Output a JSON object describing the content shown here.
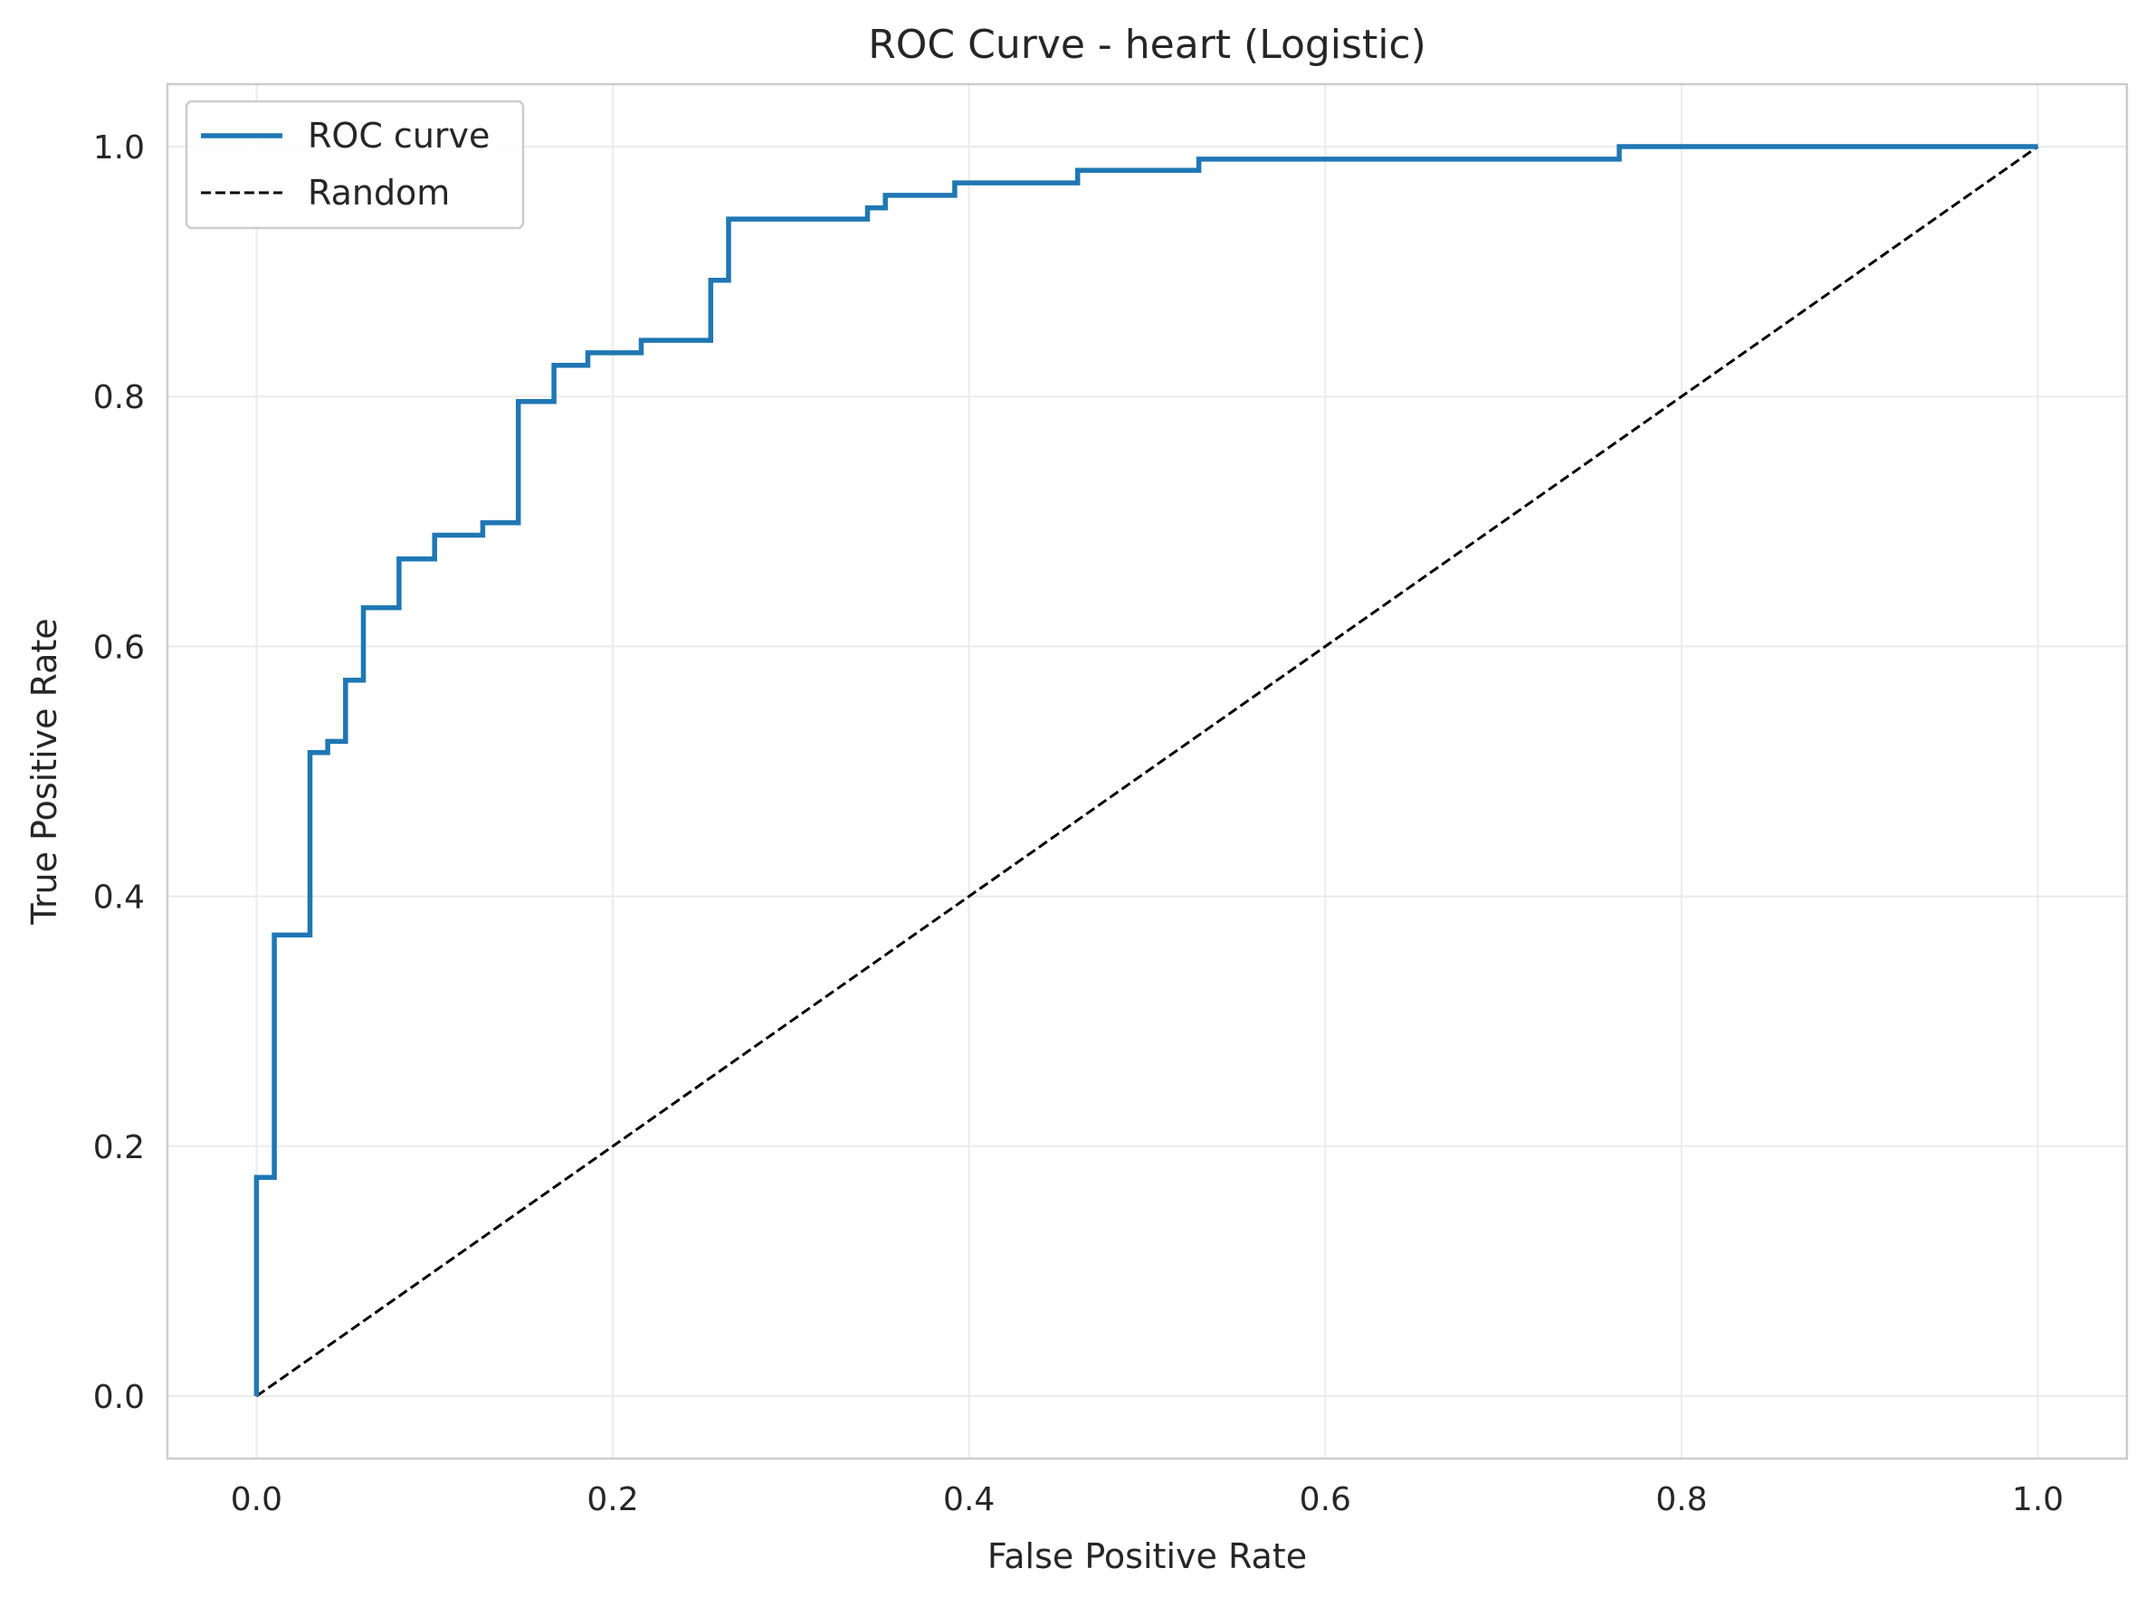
{
  "chart_data": {
    "type": "line",
    "title": "ROC Curve - heart (Logistic)",
    "xlabel": "False Positive Rate",
    "ylabel": "True Positive Rate",
    "xlim": [
      -0.05,
      1.05
    ],
    "ylim": [
      -0.05,
      1.05
    ],
    "xticks": [
      0.0,
      0.2,
      0.4,
      0.6,
      0.8,
      1.0
    ],
    "yticks": [
      0.0,
      0.2,
      0.4,
      0.6,
      0.8,
      1.0
    ],
    "xtick_labels": [
      "0.0",
      "0.2",
      "0.4",
      "0.6",
      "0.8",
      "1.0"
    ],
    "ytick_labels": [
      "0.0",
      "0.2",
      "0.4",
      "0.6",
      "0.8",
      "1.0"
    ],
    "grid": true,
    "legend_position": "top-left",
    "series": [
      {
        "name": "ROC curve",
        "color": "#1f77b4",
        "style": "solid",
        "x": [
          0.0,
          0.0,
          0.01,
          0.01,
          0.03,
          0.03,
          0.04,
          0.04,
          0.05,
          0.05,
          0.06,
          0.06,
          0.08,
          0.08,
          0.1,
          0.1,
          0.127,
          0.127,
          0.147,
          0.147,
          0.167,
          0.167,
          0.186,
          0.186,
          0.216,
          0.216,
          0.255,
          0.255,
          0.265,
          0.265,
          0.343,
          0.343,
          0.353,
          0.353,
          0.392,
          0.392,
          0.461,
          0.461,
          0.529,
          0.529,
          0.765,
          0.765,
          1.0
        ],
        "y": [
          0.0,
          0.175,
          0.175,
          0.369,
          0.369,
          0.515,
          0.515,
          0.524,
          0.524,
          0.573,
          0.573,
          0.631,
          0.631,
          0.67,
          0.67,
          0.689,
          0.689,
          0.699,
          0.699,
          0.796,
          0.796,
          0.825,
          0.825,
          0.835,
          0.835,
          0.845,
          0.845,
          0.893,
          0.893,
          0.942,
          0.942,
          0.951,
          0.951,
          0.961,
          0.961,
          0.971,
          0.971,
          0.981,
          0.981,
          0.99,
          0.99,
          1.0,
          1.0
        ]
      },
      {
        "name": "Random",
        "color": "#000000",
        "style": "dashed",
        "x": [
          0.0,
          1.0
        ],
        "y": [
          0.0,
          1.0
        ]
      }
    ]
  }
}
